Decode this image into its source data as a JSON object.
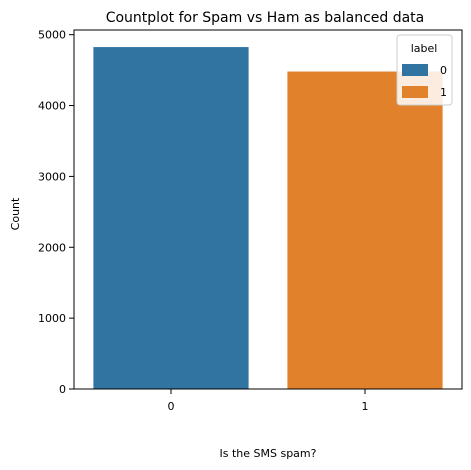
{
  "chart_data": {
    "type": "bar",
    "title": "Countplot for Spam vs Ham as balanced data",
    "xlabel": "Is the SMS spam?",
    "ylabel": "Count",
    "categories": [
      "0",
      "1"
    ],
    "values": [
      4825,
      4480
    ],
    "colors": [
      "#3274a1",
      "#e1812c"
    ],
    "yticks": [
      0,
      1000,
      2000,
      3000,
      4000,
      5000
    ],
    "ylim": [
      0,
      5066
    ],
    "grid": false,
    "legend": {
      "title": "label",
      "placement": "top-right",
      "entries": [
        {
          "label": "0",
          "color": "#3274a1"
        },
        {
          "label": "1",
          "color": "#e1812c"
        }
      ]
    }
  }
}
